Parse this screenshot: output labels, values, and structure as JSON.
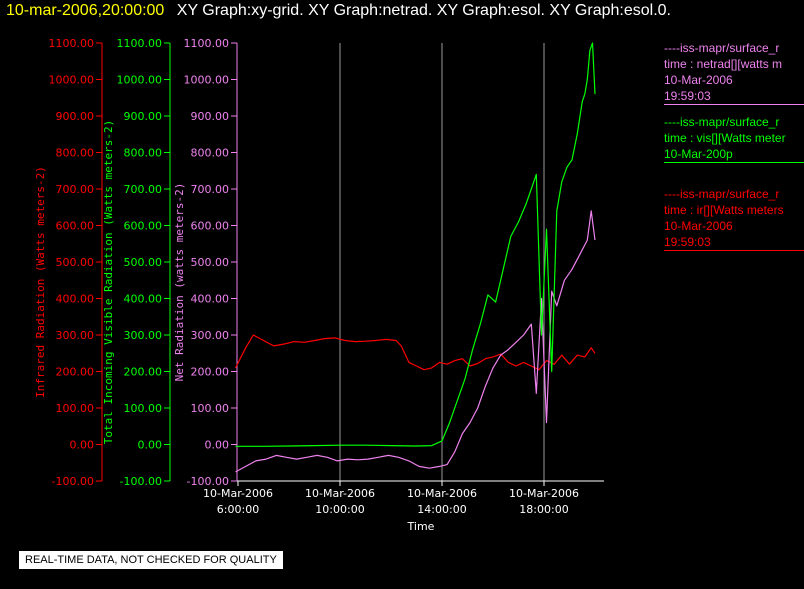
{
  "header": {
    "timestamp": "10-mar-2006,20:00:00",
    "graph_names": "XY Graph:xy-grid.  XY Graph:netrad.  XY Graph:esol.  XY Graph:esol.0."
  },
  "legend": [
    {
      "source": "----iss-mapr/surface_r",
      "variable": "time : netrad[][watts m",
      "date": "10-Mar-2006",
      "time": "19:59:03",
      "color": "#ee82ee"
    },
    {
      "source": "----iss-mapr/surface_r",
      "variable": "time : vis[][Watts meter",
      "date": "10-Mar-200p",
      "time": "",
      "color": "#00ff00"
    },
    {
      "source": "----iss-mapr/surface_r",
      "variable": "time : ir[][Watts meters",
      "date": "10-Mar-2006",
      "time": "19:59:03",
      "color": "#ff0000"
    }
  ],
  "notice": "REAL-TIME DATA, NOT CHECKED FOR QUALITY",
  "chart_data": {
    "type": "line",
    "xlabel": "Time",
    "x_ticks": [
      {
        "date": "10-Mar-2006",
        "time": "6:00:00",
        "hour": 6
      },
      {
        "date": "10-Mar-2006",
        "time": "10:00:00",
        "hour": 10
      },
      {
        "date": "10-Mar-2006",
        "time": "14:00:00",
        "hour": 14
      },
      {
        "date": "10-Mar-2006",
        "time": "18:00:00",
        "hour": 18
      }
    ],
    "xlim": [
      6,
      20
    ],
    "vertical_grid": true,
    "y_tick_labels": [
      "-100.00",
      "0.00",
      "100.00",
      "200.00",
      "300.00",
      "400.00",
      "500.00",
      "600.00",
      "700.00",
      "800.00",
      "900.00",
      "1000.00",
      "1100.00"
    ],
    "axes": [
      {
        "label": "Infrared Radiation (Watts meters-2)",
        "color": "#ff0000",
        "ylim": [
          -100,
          1100
        ]
      },
      {
        "label": "Total Incoming Visible Radiation (Watts meters-2)",
        "color": "#00ff00",
        "ylim": [
          -100,
          1100
        ]
      },
      {
        "label": "Net Radiation (watts meters-2)",
        "color": "#ee82ee",
        "ylim": [
          -100,
          1100
        ]
      }
    ],
    "series": [
      {
        "color": "#ff0000",
        "x": [
          5.9,
          6.3,
          6.6,
          7.0,
          7.4,
          7.8,
          8.2,
          8.6,
          9.0,
          9.4,
          9.8,
          10.2,
          10.6,
          11.0,
          11.4,
          11.8,
          12.2,
          12.4,
          12.7,
          13.0,
          13.3,
          13.6,
          13.9,
          14.2,
          14.5,
          14.8,
          15.1,
          15.4,
          15.7,
          16.0,
          16.3,
          16.6,
          16.9,
          17.2,
          17.5,
          17.8,
          18.1,
          18.4,
          18.7,
          19.0,
          19.3,
          19.6,
          19.85,
          20.0
        ],
        "y": [
          210,
          265,
          300,
          285,
          270,
          275,
          282,
          280,
          285,
          290,
          292,
          285,
          282,
          283,
          285,
          288,
          285,
          270,
          225,
          215,
          205,
          210,
          225,
          220,
          230,
          235,
          215,
          222,
          235,
          240,
          248,
          225,
          215,
          225,
          215,
          205,
          230,
          220,
          245,
          220,
          245,
          240,
          265,
          250
        ]
      },
      {
        "color": "#00ff00",
        "x": [
          5.9,
          7.0,
          8.0,
          9.0,
          10.0,
          11.0,
          12.0,
          13.0,
          13.6,
          14.0,
          14.3,
          14.6,
          14.9,
          15.2,
          15.5,
          15.8,
          16.1,
          16.4,
          16.7,
          17.0,
          17.3,
          17.5,
          17.7,
          17.9,
          18.1,
          18.3,
          18.5,
          18.7,
          18.9,
          19.1,
          19.3,
          19.5,
          19.6,
          19.7,
          19.8,
          19.9,
          20.0
        ],
        "y": [
          -5,
          -5,
          -4,
          -3,
          -2,
          -2,
          -3,
          -4,
          -3,
          10,
          60,
          120,
          180,
          260,
          330,
          410,
          390,
          480,
          570,
          610,
          660,
          700,
          740,
          300,
          590,
          200,
          640,
          720,
          760,
          780,
          850,
          940,
          960,
          1000,
          1080,
          1100,
          960
        ]
      },
      {
        "color": "#ee82ee",
        "x": [
          5.9,
          6.3,
          6.7,
          7.1,
          7.5,
          7.9,
          8.3,
          8.7,
          9.1,
          9.5,
          9.9,
          10.3,
          10.7,
          11.1,
          11.5,
          11.9,
          12.3,
          12.7,
          13.1,
          13.5,
          13.9,
          14.2,
          14.5,
          14.8,
          15.1,
          15.4,
          15.7,
          16.0,
          16.3,
          16.6,
          16.9,
          17.2,
          17.5,
          17.7,
          17.9,
          18.1,
          18.3,
          18.5,
          18.8,
          19.1,
          19.4,
          19.7,
          19.85,
          20.0
        ],
        "y": [
          -75,
          -60,
          -45,
          -40,
          -30,
          -35,
          -40,
          -35,
          -30,
          -35,
          -45,
          -40,
          -42,
          -40,
          -35,
          -30,
          -35,
          -45,
          -60,
          -65,
          -60,
          -55,
          -20,
          30,
          60,
          100,
          160,
          210,
          245,
          260,
          280,
          300,
          330,
          140,
          400,
          60,
          420,
          380,
          450,
          480,
          520,
          560,
          640,
          560
        ]
      }
    ]
  }
}
